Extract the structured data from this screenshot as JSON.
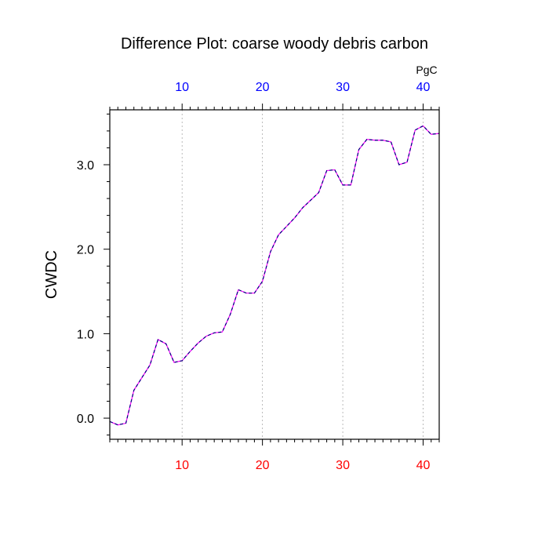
{
  "chart_data": {
    "type": "line",
    "title": "Difference Plot: coarse woody debris carbon",
    "ylabel": "CWDC",
    "units_label": "PgC",
    "xlim": [
      1,
      42
    ],
    "ylim": [
      -0.25,
      3.65
    ],
    "x_ticks": [
      10,
      20,
      30,
      40
    ],
    "x_tick_labels": [
      "10",
      "20",
      "30",
      "40"
    ],
    "y_ticks": [
      0.0,
      1.0,
      2.0,
      3.0
    ],
    "y_tick_labels": [
      "0.0",
      "1.0",
      "2.0",
      "3.0"
    ],
    "grid": "vertical dotted at major x ticks",
    "colors": {
      "top_ticks": "#0000ff",
      "bottom_ticks": "#ff0000",
      "line_solid": "#ff00ff",
      "line_dashed": "#000080",
      "grid": "#aaaaaa",
      "axis": "#000000"
    },
    "series": [
      {
        "x": [
          1,
          2,
          3,
          4,
          5,
          6,
          7,
          8,
          9,
          10,
          11,
          12,
          13,
          14,
          15,
          16,
          17,
          18,
          19,
          20,
          21,
          22,
          23,
          24,
          25,
          26,
          27,
          28,
          29,
          30,
          31,
          32,
          33,
          34,
          35,
          36,
          37,
          38,
          39,
          40,
          41,
          42
        ],
        "values": [
          -0.04,
          -0.08,
          -0.06,
          0.33,
          0.48,
          0.63,
          0.93,
          0.88,
          0.66,
          0.68,
          0.79,
          0.89,
          0.97,
          1.01,
          1.02,
          1.23,
          1.52,
          1.48,
          1.48,
          1.62,
          1.97,
          2.17,
          2.27,
          2.37,
          2.49,
          2.58,
          2.67,
          2.93,
          2.94,
          2.76,
          2.76,
          3.18,
          3.3,
          3.29,
          3.29,
          3.27,
          3.0,
          3.03,
          3.41,
          3.46,
          3.36,
          3.37
        ]
      }
    ]
  }
}
